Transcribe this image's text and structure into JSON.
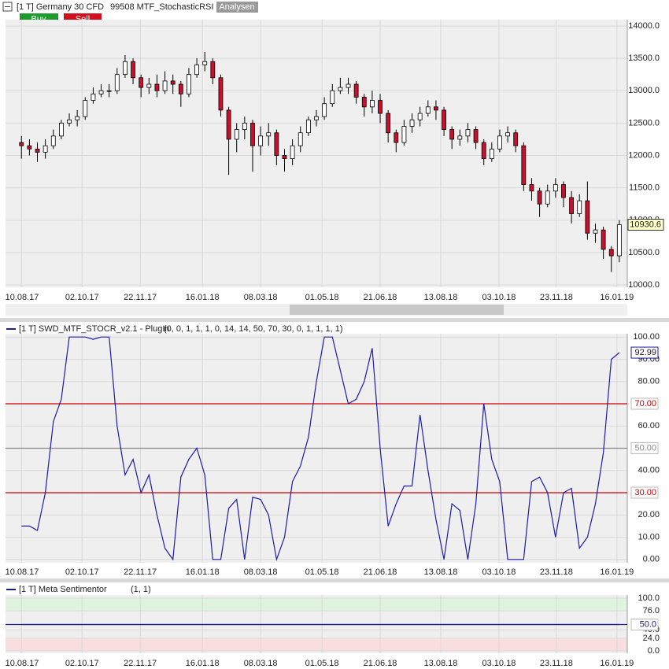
{
  "header": {
    "title": "[1 T] Germany 30 CFD",
    "indicator": "99508 MTF_StochasticRSI",
    "tab": "Analysen",
    "buy": "Buy",
    "sell": "Sell"
  },
  "chart_data": [
    {
      "type": "candlestick",
      "open": [
        12200,
        12150,
        12100,
        12050,
        12150,
        12300,
        12500,
        12550,
        12600,
        12850,
        12950,
        13000,
        13000,
        13250,
        13450,
        13200,
        13050,
        13100,
        13000,
        13150,
        13100,
        12950,
        13250,
        13400,
        13450,
        13200,
        12700,
        12250,
        12400,
        12500,
        12150,
        12300,
        12350,
        12000,
        11950,
        12150,
        12350,
        12550,
        12600,
        12800,
        13000,
        13050,
        13100,
        12900,
        12750,
        12850,
        12650,
        12350,
        12200,
        12450,
        12550,
        12650,
        12750,
        12700,
        12400,
        12250,
        12300,
        12400,
        12200,
        11950,
        12100,
        12300,
        12350,
        12150,
        11550,
        11450,
        11250,
        11450,
        11550,
        11350,
        11100,
        11300,
        10800,
        10850,
        10550,
        10450
      ],
      "high": [
        12300,
        12250,
        12200,
        12250,
        12400,
        12550,
        12650,
        12700,
        12900,
        13050,
        13100,
        13100,
        13350,
        13550,
        13500,
        13250,
        13200,
        13250,
        13300,
        13250,
        13150,
        13350,
        13500,
        13600,
        13500,
        13250,
        12750,
        12500,
        12600,
        12550,
        12450,
        12500,
        12400,
        12100,
        12250,
        12450,
        12600,
        12700,
        12900,
        13100,
        13200,
        13200,
        13150,
        12950,
        13000,
        12950,
        12700,
        12400,
        12550,
        12650,
        12750,
        12850,
        12850,
        12750,
        12450,
        12400,
        12500,
        12450,
        12250,
        12200,
        12400,
        12450,
        12400,
        12200,
        11650,
        11500,
        11550,
        11650,
        11600,
        11450,
        11400,
        11600,
        10950,
        10900,
        10600,
        11000
      ],
      "low": [
        11950,
        12000,
        11900,
        11950,
        12100,
        12250,
        12450,
        12450,
        12550,
        12800,
        12900,
        12900,
        12950,
        13200,
        13100,
        12900,
        12950,
        12900,
        12950,
        12950,
        12750,
        12900,
        13200,
        13300,
        13100,
        12600,
        11700,
        12050,
        12250,
        11750,
        12000,
        12150,
        11850,
        11750,
        11850,
        12050,
        12300,
        12450,
        12550,
        12750,
        12950,
        12950,
        12800,
        12600,
        12650,
        12500,
        12200,
        12050,
        12150,
        12350,
        12450,
        12600,
        12550,
        12300,
        12100,
        12150,
        12200,
        12100,
        11850,
        11900,
        12050,
        12200,
        12050,
        11450,
        11300,
        11050,
        11200,
        11350,
        11200,
        10950,
        11050,
        10700,
        10650,
        10400,
        10200,
        10350
      ],
      "close": [
        12150,
        12100,
        12050,
        12150,
        12300,
        12500,
        12550,
        12600,
        12850,
        12950,
        13000,
        13000,
        13250,
        13450,
        13200,
        13050,
        13100,
        13000,
        13150,
        13100,
        12950,
        13250,
        13400,
        13450,
        13200,
        12700,
        12250,
        12400,
        12500,
        12150,
        12300,
        12350,
        12000,
        11950,
        12150,
        12350,
        12550,
        12600,
        12800,
        13000,
        13050,
        13100,
        12900,
        12750,
        12850,
        12650,
        12350,
        12200,
        12450,
        12550,
        12650,
        12750,
        12700,
        12400,
        12250,
        12300,
        12400,
        12200,
        11950,
        12100,
        12300,
        12350,
        12150,
        11550,
        11450,
        11250,
        11450,
        11550,
        11350,
        11100,
        11300,
        10800,
        10850,
        10550,
        10450,
        10930.6
      ],
      "up_color": "#ffffff",
      "down_color": "#c8102e",
      "xlim": [
        -2,
        76
      ],
      "xticks": [
        {
          "value": 0,
          "label": "10.08.17"
        },
        {
          "value": 7.6,
          "label": "02.10.17"
        },
        {
          "value": 14.9,
          "label": "22.11.17"
        },
        {
          "value": 22.7,
          "label": "16.01.18"
        },
        {
          "value": 30,
          "label": "08.03.18"
        },
        {
          "value": 37.7,
          "label": "01.05.18"
        },
        {
          "value": 45,
          "label": "21.06.18"
        },
        {
          "value": 52.6,
          "label": "13.08.18"
        },
        {
          "value": 59.9,
          "label": "03.10.18"
        },
        {
          "value": 67.1,
          "label": "23.11.18"
        },
        {
          "value": 74.7,
          "label": "16.01.19"
        }
      ],
      "ylim": [
        9964,
        14097
      ],
      "yticks": [
        {
          "value": 10000,
          "label": "10000.0"
        },
        {
          "value": 10500,
          "label": "10500.0"
        },
        {
          "value": 11000,
          "label": "11000.0"
        },
        {
          "value": 11500,
          "label": "11500.0"
        },
        {
          "value": 12000,
          "label": "12000.0"
        },
        {
          "value": 12500,
          "label": "12500.0"
        },
        {
          "value": 13000,
          "label": "13000.0"
        },
        {
          "value": 13500,
          "label": "13500.0"
        },
        {
          "value": 14000,
          "label": "14000.0"
        }
      ],
      "grid": true
    },
    {
      "type": "line",
      "series": [
        {
          "name": "[1 T] SWD_MTF_STOCR_v2.1 - PlugIn",
          "color": "#1c1ca8",
          "values": [
            15,
            15,
            13,
            30,
            62,
            72,
            100,
            100,
            100,
            99,
            100,
            100,
            60,
            38,
            45,
            30,
            38,
            20,
            5,
            0,
            37,
            45,
            50,
            38,
            0,
            0,
            23,
            27,
            0,
            28,
            27,
            20,
            0,
            10,
            35,
            42,
            55,
            80,
            100,
            100,
            85,
            70,
            72,
            80,
            95,
            50,
            15,
            25,
            33,
            33,
            65,
            40,
            18,
            0,
            25,
            22,
            0,
            25,
            70,
            45,
            35,
            0,
            0,
            0,
            35,
            37,
            30,
            10,
            30,
            32,
            5,
            10,
            25,
            48,
            90,
            92.99
          ]
        }
      ],
      "parameters": "(0, 0, 1, 1, 1, 0, 14, 14, 50, 70, 30, 0, 1, 1, 1, 1)",
      "ylim": [
        -1.5,
        101.5
      ],
      "yticks": [
        {
          "value": 100,
          "label": "100.00"
        },
        {
          "value": 90,
          "label": "90.00"
        },
        {
          "value": 80,
          "label": "80.00"
        },
        {
          "value": 60,
          "label": "60.00"
        },
        {
          "value": 40,
          "label": "40.00"
        },
        {
          "value": 20,
          "label": "20.00"
        },
        {
          "value": 10,
          "label": "10.00"
        },
        {
          "value": 0,
          "label": "0.00"
        }
      ],
      "levels": [
        {
          "value": 70,
          "label": "70.00",
          "color": "#cc0000"
        },
        {
          "value": 50,
          "label": "50.00",
          "color": "#888888"
        },
        {
          "value": 30,
          "label": "30.00",
          "color": "#cc0000"
        }
      ],
      "grid": true
    },
    {
      "type": "line",
      "series": [
        {
          "name": "[1 T] Meta Sentimentor",
          "color": "#1a1a8c",
          "values": [
            50,
            50,
            50,
            50,
            50,
            50,
            50,
            50,
            50,
            50,
            50,
            50,
            50,
            50,
            50,
            50,
            50,
            50,
            50,
            50,
            50,
            50,
            50,
            50,
            50,
            50,
            50,
            50,
            50,
            50,
            50,
            50,
            50,
            50,
            50,
            50,
            50,
            50,
            50,
            50,
            50,
            50,
            50,
            50,
            50,
            50,
            50,
            50,
            50,
            50,
            50,
            50,
            50,
            50,
            50,
            50,
            50,
            50,
            50,
            50,
            50,
            50,
            50,
            50,
            50,
            50,
            50,
            50,
            50,
            50,
            50,
            50,
            50,
            50,
            50,
            50
          ]
        }
      ],
      "parameters": "(1, 1)",
      "ylim": [
        -4.5,
        106
      ],
      "yticks": [
        {
          "value": 100,
          "label": "100.0"
        },
        {
          "value": 76,
          "label": "76.0"
        },
        {
          "value": 40,
          "label": "40.0"
        },
        {
          "value": 24,
          "label": "24.0"
        },
        {
          "value": 0,
          "label": "0.0"
        }
      ],
      "levels": [
        {
          "value": 50,
          "label": "50.0",
          "color": "#1a1a8c"
        }
      ],
      "bands": [
        {
          "from": 76,
          "to": 100,
          "color": "#dff3df"
        },
        {
          "from": 0,
          "to": 24,
          "color": "#f8dede"
        }
      ],
      "grid": true
    }
  ]
}
